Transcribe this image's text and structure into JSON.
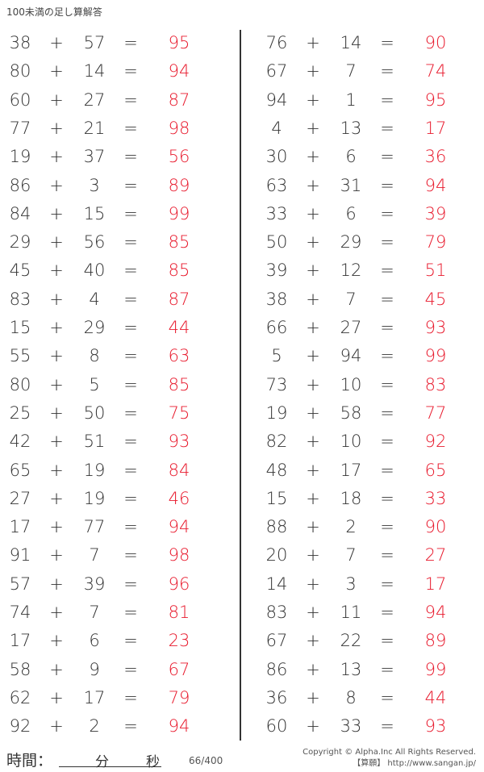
{
  "title": "100未満の足し算解答",
  "plus": "+",
  "equals": "=",
  "left_column": [
    {
      "a": "38",
      "b": "57",
      "ans": "95"
    },
    {
      "a": "80",
      "b": "14",
      "ans": "94"
    },
    {
      "a": "60",
      "b": "27",
      "ans": "87"
    },
    {
      "a": "77",
      "b": "21",
      "ans": "98"
    },
    {
      "a": "19",
      "b": "37",
      "ans": "56"
    },
    {
      "a": "86",
      "b": "3",
      "ans": "89"
    },
    {
      "a": "84",
      "b": "15",
      "ans": "99"
    },
    {
      "a": "29",
      "b": "56",
      "ans": "85"
    },
    {
      "a": "45",
      "b": "40",
      "ans": "85"
    },
    {
      "a": "83",
      "b": "4",
      "ans": "87"
    },
    {
      "a": "15",
      "b": "29",
      "ans": "44"
    },
    {
      "a": "55",
      "b": "8",
      "ans": "63"
    },
    {
      "a": "80",
      "b": "5",
      "ans": "85"
    },
    {
      "a": "25",
      "b": "50",
      "ans": "75"
    },
    {
      "a": "42",
      "b": "51",
      "ans": "93"
    },
    {
      "a": "65",
      "b": "19",
      "ans": "84"
    },
    {
      "a": "27",
      "b": "19",
      "ans": "46"
    },
    {
      "a": "17",
      "b": "77",
      "ans": "94"
    },
    {
      "a": "91",
      "b": "7",
      "ans": "98"
    },
    {
      "a": "57",
      "b": "39",
      "ans": "96"
    },
    {
      "a": "74",
      "b": "7",
      "ans": "81"
    },
    {
      "a": "17",
      "b": "6",
      "ans": "23"
    },
    {
      "a": "58",
      "b": "9",
      "ans": "67"
    },
    {
      "a": "62",
      "b": "17",
      "ans": "79"
    },
    {
      "a": "92",
      "b": "2",
      "ans": "94"
    }
  ],
  "right_column": [
    {
      "a": "76",
      "b": "14",
      "ans": "90"
    },
    {
      "a": "67",
      "b": "7",
      "ans": "74"
    },
    {
      "a": "94",
      "b": "1",
      "ans": "95"
    },
    {
      "a": "4",
      "b": "13",
      "ans": "17"
    },
    {
      "a": "30",
      "b": "6",
      "ans": "36"
    },
    {
      "a": "63",
      "b": "31",
      "ans": "94"
    },
    {
      "a": "33",
      "b": "6",
      "ans": "39"
    },
    {
      "a": "50",
      "b": "29",
      "ans": "79"
    },
    {
      "a": "39",
      "b": "12",
      "ans": "51"
    },
    {
      "a": "38",
      "b": "7",
      "ans": "45"
    },
    {
      "a": "66",
      "b": "27",
      "ans": "93"
    },
    {
      "a": "5",
      "b": "94",
      "ans": "99"
    },
    {
      "a": "73",
      "b": "10",
      "ans": "83"
    },
    {
      "a": "19",
      "b": "58",
      "ans": "77"
    },
    {
      "a": "82",
      "b": "10",
      "ans": "92"
    },
    {
      "a": "48",
      "b": "17",
      "ans": "65"
    },
    {
      "a": "15",
      "b": "18",
      "ans": "33"
    },
    {
      "a": "88",
      "b": "2",
      "ans": "90"
    },
    {
      "a": "20",
      "b": "7",
      "ans": "27"
    },
    {
      "a": "14",
      "b": "3",
      "ans": "17"
    },
    {
      "a": "83",
      "b": "11",
      "ans": "94"
    },
    {
      "a": "67",
      "b": "22",
      "ans": "89"
    },
    {
      "a": "86",
      "b": "13",
      "ans": "99"
    },
    {
      "a": "36",
      "b": "8",
      "ans": "44"
    },
    {
      "a": "60",
      "b": "33",
      "ans": "93"
    }
  ],
  "footer": {
    "time_label": "時間：",
    "minutes_label": "分",
    "seconds_label": "秒",
    "page": "66/400",
    "copyright": "Copyright © Alpha.Inc All Rights Reserved.",
    "site": "【算願】 http://www.sangan.jp/"
  },
  "colors": {
    "answer": "#e8192c",
    "text": "#333333"
  }
}
